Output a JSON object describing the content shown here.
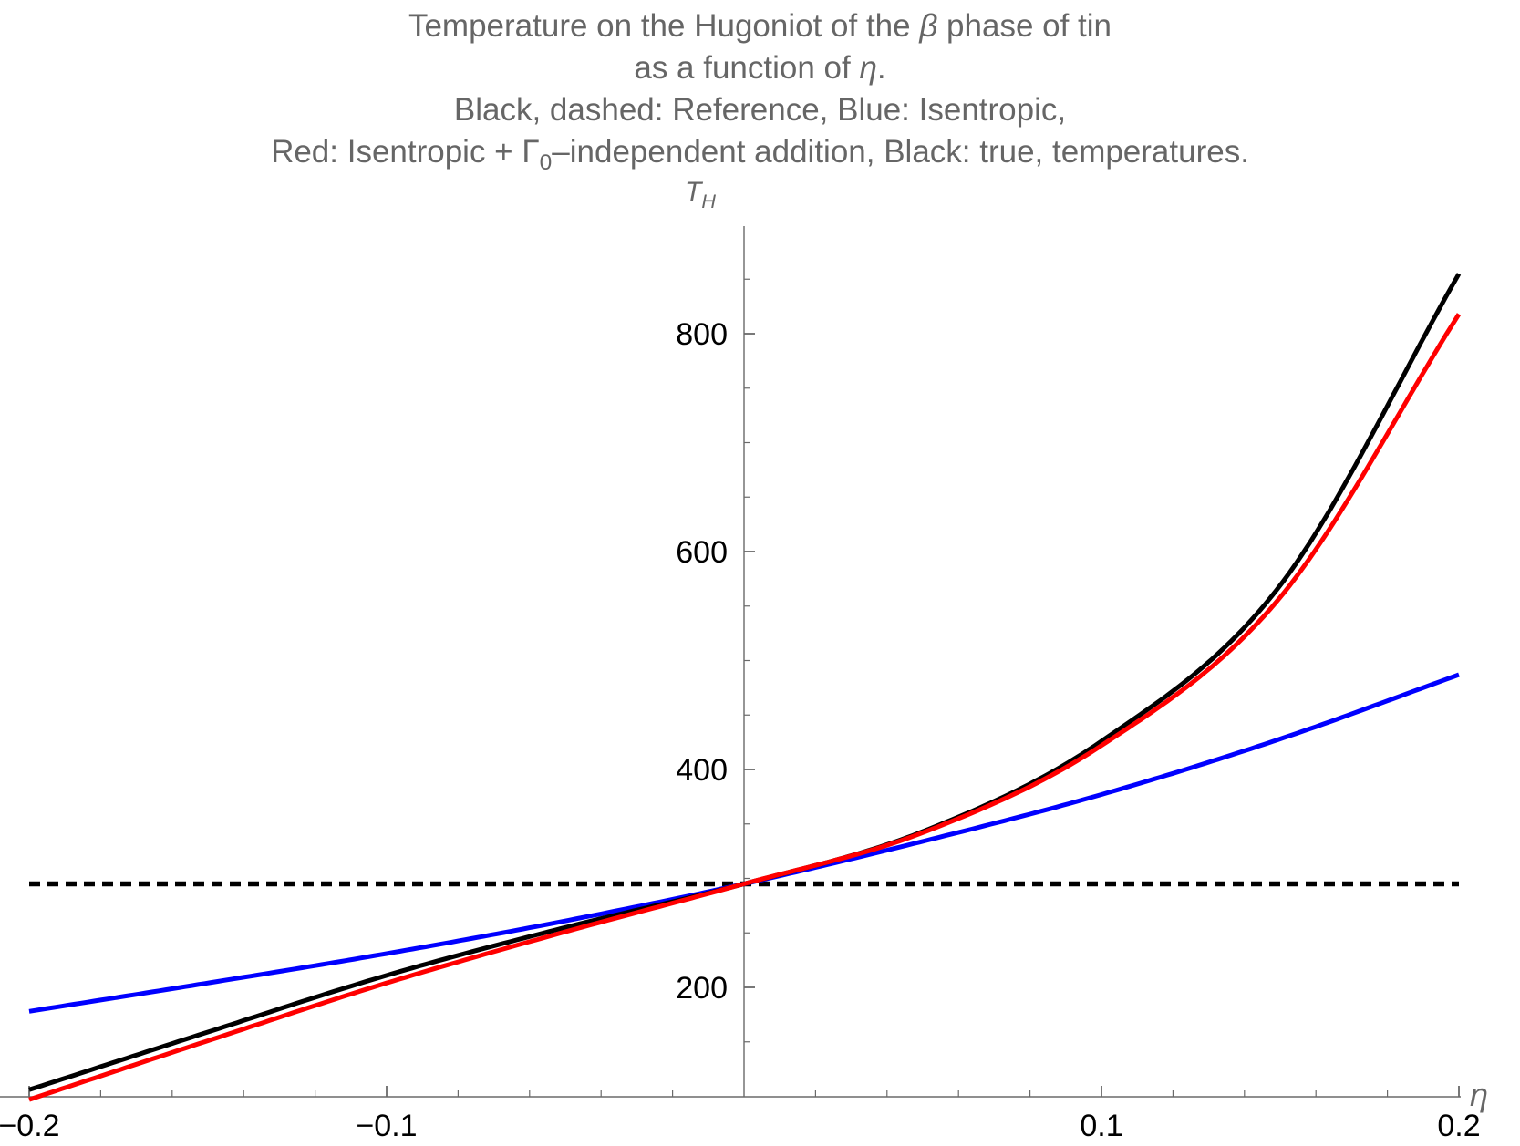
{
  "page": {
    "background": "#ffffff"
  },
  "title": {
    "color": "#666666",
    "lines": [
      [
        [
          "Temperature on the Hugoniot of the ",
          "n"
        ],
        [
          "β",
          "i"
        ],
        [
          " phase of tin",
          "n"
        ]
      ],
      [
        [
          "as a function of ",
          "n"
        ],
        [
          "η",
          "i"
        ],
        [
          ".",
          "n"
        ]
      ],
      [
        [
          "Black, dashed: Reference, Blue: Isentropic,",
          "n"
        ]
      ],
      [
        [
          "Red: Isentropic + ",
          "n"
        ],
        [
          "Γ",
          "n"
        ],
        [
          "0",
          "s"
        ],
        [
          "–independent addition, Black: true, temperatures.",
          "n"
        ]
      ]
    ]
  },
  "chart_data": {
    "type": "line",
    "title": "Temperature on the Hugoniot of the β phase of tin as a function of η.",
    "subtitle": "Black, dashed: Reference, Blue: Isentropic, Red: Isentropic + Γ0–independent addition, Black: true, temperatures.",
    "xlabel_segments": [
      [
        "η",
        "i"
      ]
    ],
    "ylabel_segments": [
      [
        "T",
        "i"
      ],
      [
        "H",
        "is"
      ]
    ],
    "xlim": [
      -0.2,
      0.2
    ],
    "ylim": [
      100,
      900
    ],
    "grid": false,
    "legend_position": "in-title",
    "axis_color": "#6a6a6a",
    "tick_label_color": "#000000",
    "x_ticks": {
      "major": [
        -0.2,
        -0.1,
        0.1,
        0.2
      ],
      "labels": [
        "−0.2",
        "−0.1",
        "0.1",
        "0.2"
      ],
      "minor_step": 0.02
    },
    "y_ticks": {
      "major": [
        200,
        400,
        600,
        800
      ],
      "labels": [
        "200",
        "400",
        "600",
        "800"
      ],
      "minor_step": 50,
      "minor_min": 150,
      "minor_max": 850
    },
    "x": [
      -0.2,
      -0.15,
      -0.1,
      -0.05,
      0,
      0.05,
      0.1,
      0.15,
      0.2
    ],
    "series": [
      {
        "name": "Reference",
        "color": "#000000",
        "dashed": true,
        "x": [
          -0.2,
          0.2
        ],
        "values": [
          295,
          295
        ]
      },
      {
        "name": "Isentropic",
        "color": "#0000ff",
        "dashed": false,
        "values": [
          178,
          204,
          231,
          261,
          295,
          334,
          377,
          428,
          487
        ]
      },
      {
        "name": "True temperature",
        "color": "#000000",
        "dashed": false,
        "values": [
          106,
          159,
          211,
          255,
          295,
          343,
          426,
          569,
          855
        ]
      },
      {
        "name": "Isentropic + Γ0-independent addition",
        "color": "#ff0000",
        "dashed": false,
        "values": [
          97,
          151,
          204,
          251,
          295,
          342,
          422,
          558,
          818
        ]
      }
    ]
  }
}
